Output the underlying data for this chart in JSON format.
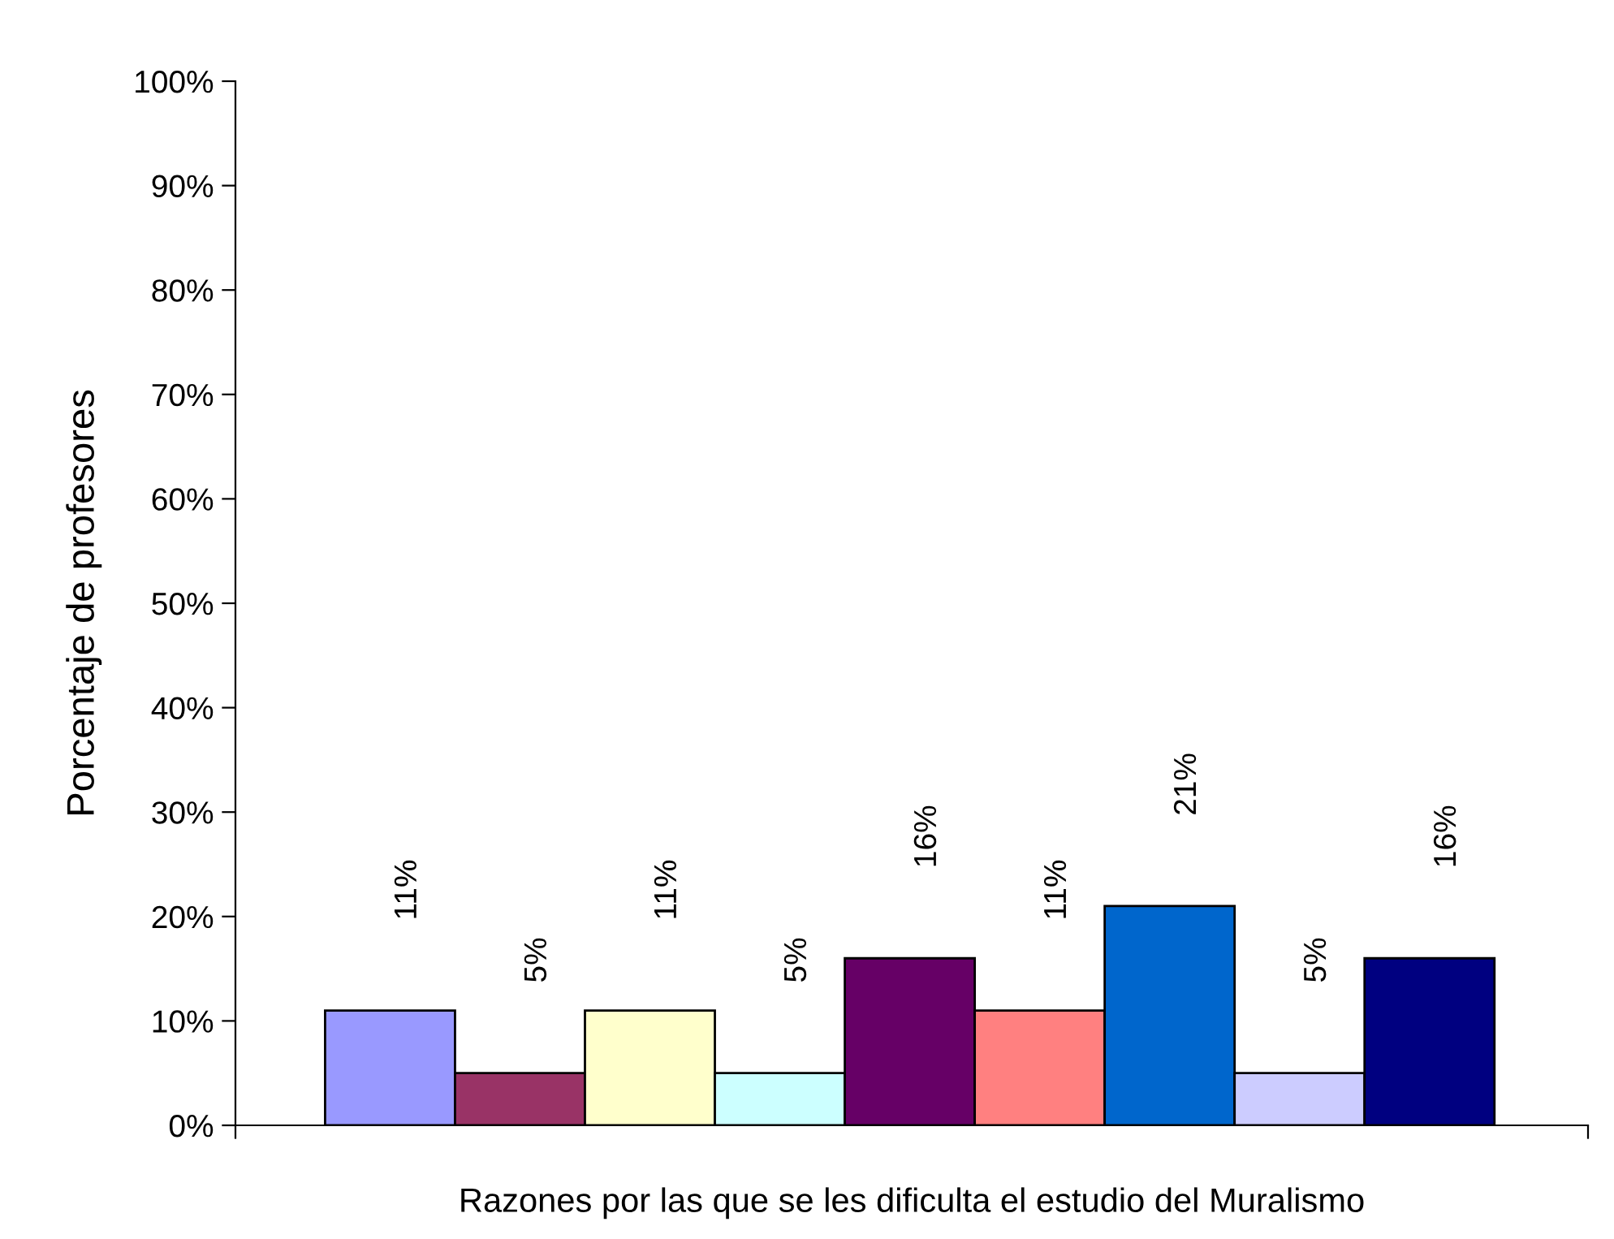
{
  "chart_data": {
    "type": "bar",
    "xlabel": "Razones por las que se les dificulta el estudio del Muralismo",
    "ylabel": "Porcentaje de profesores",
    "categories": [
      null,
      null,
      null,
      null,
      null,
      null,
      null,
      null,
      null
    ],
    "values": [
      11,
      5,
      11,
      5,
      16,
      11,
      21,
      5,
      16
    ],
    "colors": [
      "#9999ff",
      "#993366",
      "#ffffcc",
      "#ccffff",
      "#660066",
      "#ff8080",
      "#0066cc",
      "#ccccff",
      "#000080"
    ],
    "value_labels": [
      "11%",
      "5%",
      "11%",
      "5%",
      "16%",
      "11%",
      "21%",
      "5%",
      "16%"
    ],
    "ylim": [
      0,
      100
    ],
    "yticks": [
      {
        "value": 0,
        "label": "0%"
      },
      {
        "value": 10,
        "label": "10%"
      },
      {
        "value": 20,
        "label": "20%"
      },
      {
        "value": 30,
        "label": "30%"
      },
      {
        "value": 40,
        "label": "40%"
      },
      {
        "value": 50,
        "label": "50%"
      },
      {
        "value": 60,
        "label": "60%"
      },
      {
        "value": 70,
        "label": "70%"
      },
      {
        "value": 80,
        "label": "80%"
      },
      {
        "value": 90,
        "label": "90%"
      },
      {
        "value": 100,
        "label": "100%"
      }
    ],
    "grid": false
  }
}
